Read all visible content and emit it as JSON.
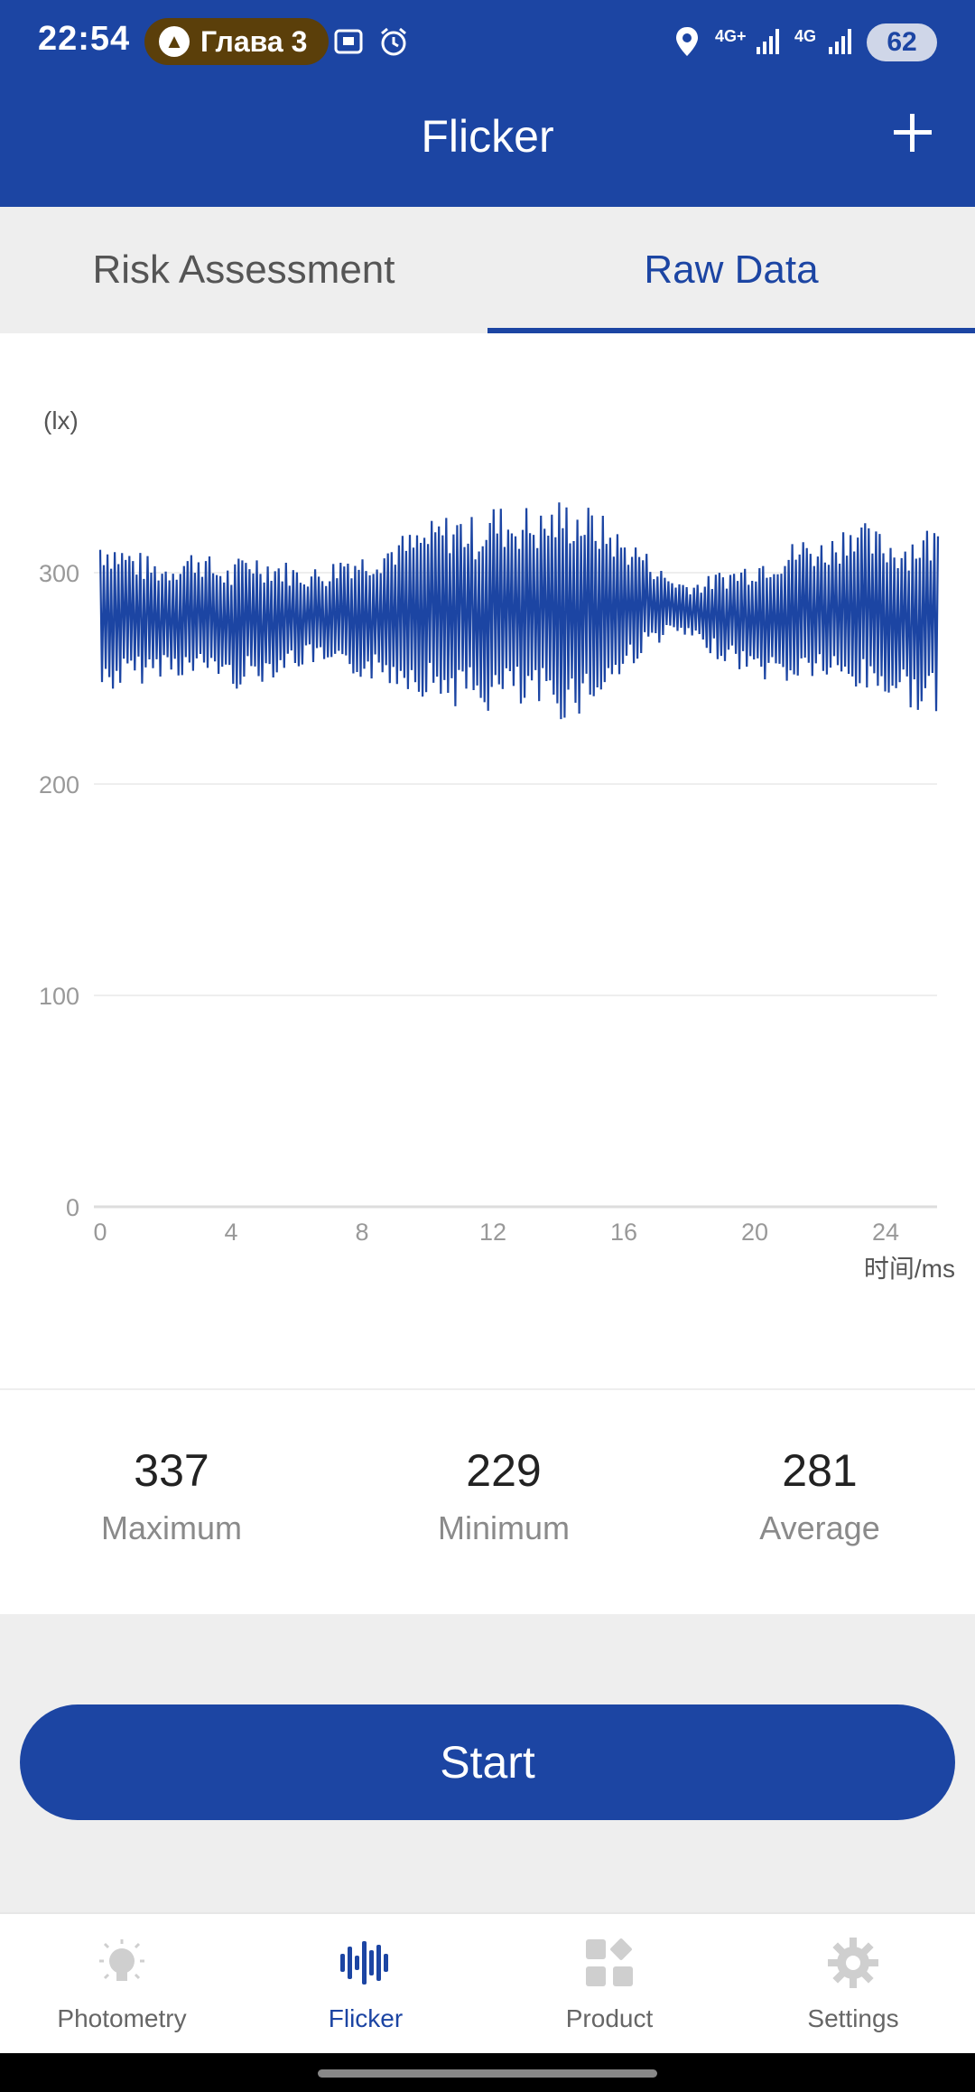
{
  "status_bar": {
    "time": "22:54",
    "notification": "Глава 3",
    "network_1": "4G+",
    "network_2": "4G",
    "battery": "62"
  },
  "app_bar": {
    "title": "Flicker",
    "add_icon": "plus-icon"
  },
  "tabs": [
    {
      "label": "Risk Assessment",
      "active": false
    },
    {
      "label": "Raw Data",
      "active": true
    }
  ],
  "chart_data": {
    "type": "line",
    "ylabel": "(lx)",
    "xlabel": "时间/ms",
    "xlim": [
      0,
      25.6
    ],
    "ylim": [
      0,
      337
    ],
    "x_ticks": [
      "0",
      "4",
      "8",
      "12",
      "16",
      "20",
      "24"
    ],
    "y_ticks": [
      "0",
      "100",
      "200",
      "300"
    ],
    "series": [
      {
        "color": "#1c45a3",
        "x": [
          0,
          0.5,
          1,
          1.5,
          2,
          2.5,
          3,
          3.5,
          4,
          4.5,
          5,
          5.5,
          6,
          6.5,
          7,
          7.5,
          8,
          8.5,
          9,
          9.5,
          10,
          10.5,
          11,
          11.5,
          12,
          12.5,
          13,
          13.5,
          14,
          14.5,
          15,
          15.5,
          16,
          16.5,
          17,
          17.5,
          18,
          18.5,
          19,
          19.5,
          20,
          20.5,
          21,
          21.5,
          22,
          22.5,
          23,
          23.5,
          24,
          24.5,
          25,
          25.5
        ],
        "max": [
          320,
          316,
          312,
          308,
          306,
          310,
          313,
          306,
          304,
          312,
          309,
          307,
          304,
          303,
          305,
          312,
          310,
          314,
          318,
          320,
          324,
          328,
          330,
          326,
          334,
          331,
          333,
          330,
          336,
          335,
          332,
          326,
          318,
          314,
          304,
          298,
          296,
          298,
          302,
          304,
          308,
          311,
          314,
          318,
          316,
          320,
          330,
          322,
          320,
          318,
          322,
          324
        ],
        "min": [
          240,
          244,
          246,
          248,
          252,
          250,
          248,
          252,
          244,
          246,
          248,
          252,
          254,
          256,
          252,
          248,
          250,
          247,
          246,
          244,
          240,
          238,
          236,
          234,
          232,
          238,
          230,
          234,
          229,
          232,
          234,
          242,
          250,
          260,
          266,
          270,
          268,
          262,
          258,
          254,
          250,
          248,
          246,
          248,
          250,
          244,
          242,
          242,
          240,
          238,
          234,
          232
        ]
      }
    ]
  },
  "stats": [
    {
      "value": "337",
      "label": "Maximum"
    },
    {
      "value": "229",
      "label": "Minimum"
    },
    {
      "value": "281",
      "label": "Average"
    }
  ],
  "start_button": "Start",
  "bottom_nav": [
    {
      "label": "Photometry",
      "icon": "bulb-icon",
      "active": false
    },
    {
      "label": "Flicker",
      "icon": "waveform-icon",
      "active": true
    },
    {
      "label": "Product",
      "icon": "grid-icon",
      "active": false
    },
    {
      "label": "Settings",
      "icon": "gear-icon",
      "active": false
    }
  ],
  "colors": {
    "primary": "#1c45a3",
    "inactive": "#cfcfcf"
  }
}
